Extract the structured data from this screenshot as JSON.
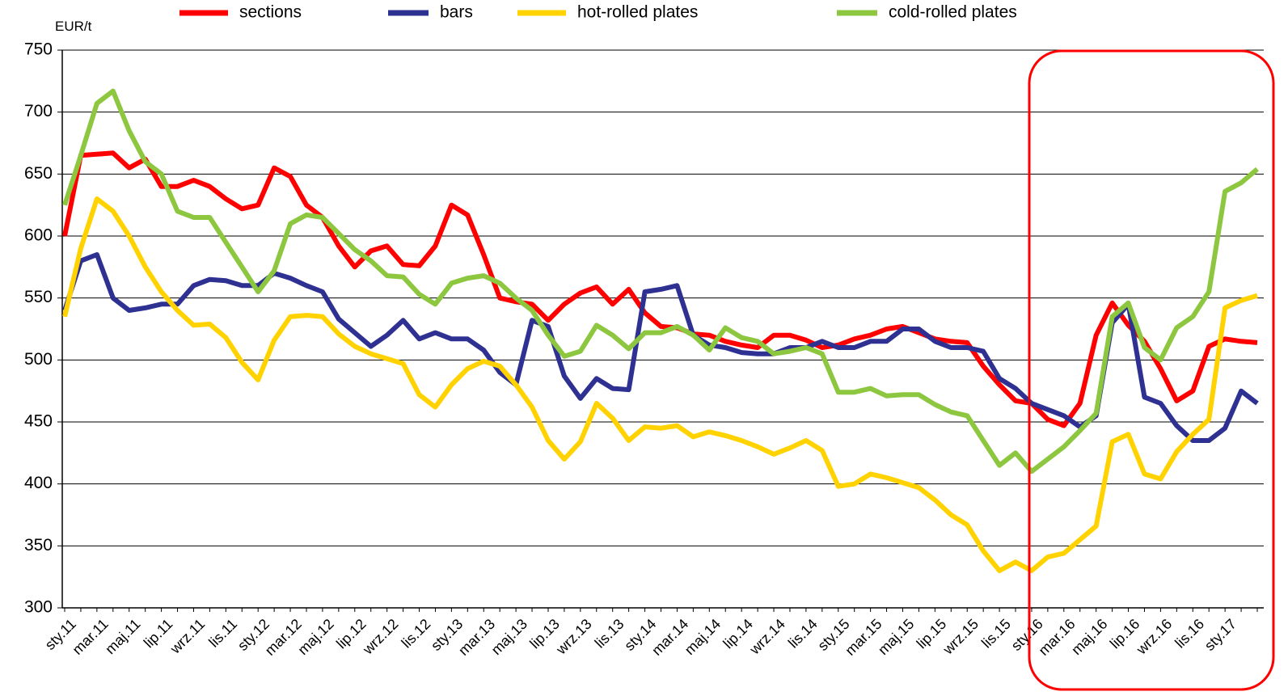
{
  "chart_data": {
    "type": "line",
    "y_label": "EUR/t",
    "categories": [
      "sty.11",
      null,
      "mar.11",
      null,
      "maj.11",
      null,
      "lip.11",
      null,
      "wrz.11",
      null,
      "lis.11",
      null,
      "sty.12",
      null,
      "mar.12",
      null,
      "maj.12",
      null,
      "lip.12",
      null,
      "wrz.12",
      null,
      "lis.12",
      null,
      "sty.13",
      null,
      "mar.13",
      null,
      "maj.13",
      null,
      "lip.13",
      null,
      "wrz.13",
      null,
      "lis.13",
      null,
      "sty.14",
      null,
      "mar.14",
      null,
      "maj.14",
      null,
      "lip.14",
      null,
      "wrz.14",
      null,
      "lis.14",
      null,
      "sty.15",
      null,
      "mar.15",
      null,
      "maj.15",
      null,
      "lip.15",
      null,
      "wrz.15",
      null,
      "lis.15",
      null,
      "sty.16",
      null,
      "mar.16",
      null,
      "maj.16",
      null,
      "lip.16",
      null,
      "wrz.16",
      null,
      "lis.16",
      null,
      "sty.17",
      null,
      null
    ],
    "series": [
      {
        "name": "sections",
        "color": "#ff0000",
        "values": [
          600,
          665,
          666,
          667,
          655,
          662,
          640,
          640,
          645,
          640,
          630,
          622,
          625,
          655,
          648,
          625,
          615,
          592,
          575,
          588,
          592,
          577,
          576,
          592,
          625,
          617,
          585,
          550,
          547,
          545,
          532,
          545,
          554,
          559,
          545,
          557,
          538,
          527,
          526,
          521,
          520,
          515,
          512,
          510,
          520,
          520,
          516,
          510,
          512,
          517,
          520,
          525,
          527,
          522,
          517,
          515,
          514,
          495,
          480,
          467,
          465,
          452,
          447,
          465,
          520,
          546,
          528,
          515,
          493,
          467,
          475,
          511,
          517,
          515,
          514
        ]
      },
      {
        "name": "bars",
        "color": "#2e3192",
        "values": [
          540,
          580,
          585,
          550,
          540,
          542,
          545,
          545,
          560,
          565,
          564,
          560,
          560,
          570,
          566,
          560,
          555,
          533,
          522,
          511,
          520,
          532,
          517,
          522,
          517,
          517,
          508,
          490,
          480,
          532,
          527,
          487,
          469,
          485,
          477,
          476,
          555,
          557,
          560,
          520,
          512,
          510,
          506,
          505,
          505,
          510,
          510,
          515,
          510,
          510,
          515,
          515,
          525,
          525,
          515,
          510,
          510,
          507,
          485,
          477,
          465,
          460,
          455,
          446,
          455,
          530,
          545,
          470,
          465,
          447,
          435,
          435,
          445,
          475,
          465
        ]
      },
      {
        "name": "hot-rolled plates",
        "color": "#ffd200",
        "values": [
          535,
          590,
          630,
          620,
          600,
          575,
          555,
          540,
          528,
          529,
          518,
          498,
          484,
          516,
          535,
          536,
          535,
          521,
          511,
          505,
          501,
          497,
          472,
          462,
          480,
          493,
          499,
          495,
          480,
          462,
          435,
          420,
          434,
          465,
          453,
          435,
          446,
          445,
          447,
          438,
          442,
          439,
          435,
          430,
          424,
          429,
          435,
          427,
          398,
          400,
          408,
          405,
          401,
          397,
          387,
          375,
          367,
          346,
          330,
          337,
          330,
          341,
          344,
          355,
          366,
          434,
          440,
          408,
          404,
          426,
          440,
          452,
          542,
          548,
          552
        ]
      },
      {
        "name": "cold-rolled plates",
        "color": "#8dc63f",
        "values": [
          625,
          665,
          707,
          717,
          685,
          660,
          650,
          620,
          615,
          615,
          595,
          575,
          555,
          572,
          610,
          617,
          615,
          602,
          589,
          580,
          568,
          567,
          553,
          545,
          562,
          566,
          568,
          562,
          550,
          540,
          520,
          503,
          507,
          528,
          520,
          509,
          522,
          522,
          527,
          520,
          508,
          526,
          518,
          515,
          505,
          507,
          510,
          505,
          474,
          474,
          477,
          471,
          472,
          472,
          464,
          458,
          455,
          435,
          415,
          425,
          410,
          420,
          430,
          443,
          457,
          535,
          546,
          510,
          500,
          526,
          535,
          555,
          636,
          643,
          654
        ]
      }
    ],
    "ylim": [
      300,
      750
    ],
    "yticks": [
      300,
      350,
      400,
      450,
      500,
      550,
      600,
      650,
      700,
      750
    ],
    "grid": true,
    "legend": "top"
  }
}
